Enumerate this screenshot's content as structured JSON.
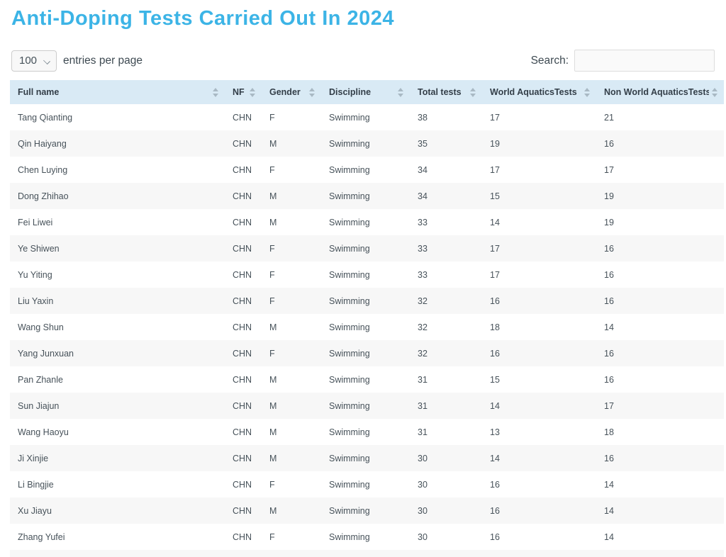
{
  "page": {
    "title": "Anti-Doping Tests Carried Out In 2024"
  },
  "controls": {
    "entries_selected": "100",
    "entries_options": [
      "100"
    ],
    "entries_label": "entries per page",
    "search_label": "Search:",
    "search_value": "",
    "search_placeholder": ""
  },
  "icons": {
    "sort": "sort-up-down-arrows",
    "select": "chevron-down"
  },
  "colors": {
    "accent": "#3cb4e6",
    "header_bg": "#d9eaf5",
    "stripe_bg": "#f7f7f7",
    "sort_arrow": "#a9b9c4"
  },
  "table": {
    "columns": [
      {
        "key": "full-name",
        "label": "Full name"
      },
      {
        "key": "nf",
        "label": "NF"
      },
      {
        "key": "gender",
        "label": "Gender"
      },
      {
        "key": "discipline",
        "label": "Discipline"
      },
      {
        "key": "total-tests",
        "label": "Total tests"
      },
      {
        "key": "world-aquatics-tests",
        "label": "World AquaticsTests"
      },
      {
        "key": "non-world-aquatics-tests",
        "label": "Non World AquaticsTests"
      }
    ],
    "rows": [
      [
        "Tang Qianting",
        "CHN",
        "F",
        "Swimming",
        "38",
        "17",
        "21"
      ],
      [
        "Qin Haiyang",
        "CHN",
        "M",
        "Swimming",
        "35",
        "19",
        "16"
      ],
      [
        "Chen Luying",
        "CHN",
        "F",
        "Swimming",
        "34",
        "17",
        "17"
      ],
      [
        "Dong Zhihao",
        "CHN",
        "M",
        "Swimming",
        "34",
        "15",
        "19"
      ],
      [
        "Fei Liwei",
        "CHN",
        "M",
        "Swimming",
        "33",
        "14",
        "19"
      ],
      [
        "Ye Shiwen",
        "CHN",
        "F",
        "Swimming",
        "33",
        "17",
        "16"
      ],
      [
        "Yu Yiting",
        "CHN",
        "F",
        "Swimming",
        "33",
        "17",
        "16"
      ],
      [
        "Liu Yaxin",
        "CHN",
        "F",
        "Swimming",
        "32",
        "16",
        "16"
      ],
      [
        "Wang Shun",
        "CHN",
        "M",
        "Swimming",
        "32",
        "18",
        "14"
      ],
      [
        "Yang Junxuan",
        "CHN",
        "F",
        "Swimming",
        "32",
        "16",
        "16"
      ],
      [
        "Pan Zhanle",
        "CHN",
        "M",
        "Swimming",
        "31",
        "15",
        "16"
      ],
      [
        "Sun Jiajun",
        "CHN",
        "M",
        "Swimming",
        "31",
        "14",
        "17"
      ],
      [
        "Wang Haoyu",
        "CHN",
        "M",
        "Swimming",
        "31",
        "13",
        "18"
      ],
      [
        "Ji Xinjie",
        "CHN",
        "M",
        "Swimming",
        "30",
        "14",
        "16"
      ],
      [
        "Li Bingjie",
        "CHN",
        "F",
        "Swimming",
        "30",
        "16",
        "14"
      ],
      [
        "Xu Jiayu",
        "CHN",
        "M",
        "Swimming",
        "30",
        "16",
        "14"
      ],
      [
        "Zhang Yufei",
        "CHN",
        "F",
        "Swimming",
        "30",
        "16",
        "14"
      ]
    ]
  }
}
